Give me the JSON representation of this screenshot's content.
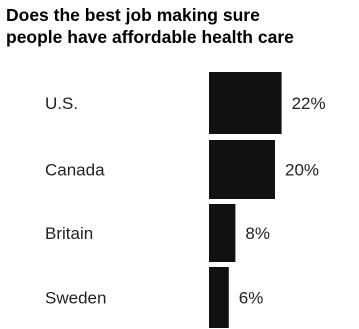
{
  "chart_data": {
    "type": "bar",
    "orientation": "horizontal",
    "title_lines": [
      "Does the best job making sure",
      "people have affordable health care"
    ],
    "categories": [
      "U.S.",
      "Canada",
      "Britain",
      "Sweden"
    ],
    "values": [
      22,
      20,
      8,
      6
    ],
    "value_labels": [
      "22%",
      "20%",
      "8%",
      "6%"
    ],
    "unit": "%",
    "bar_color": "#111111",
    "grid": false,
    "legend": "none"
  }
}
